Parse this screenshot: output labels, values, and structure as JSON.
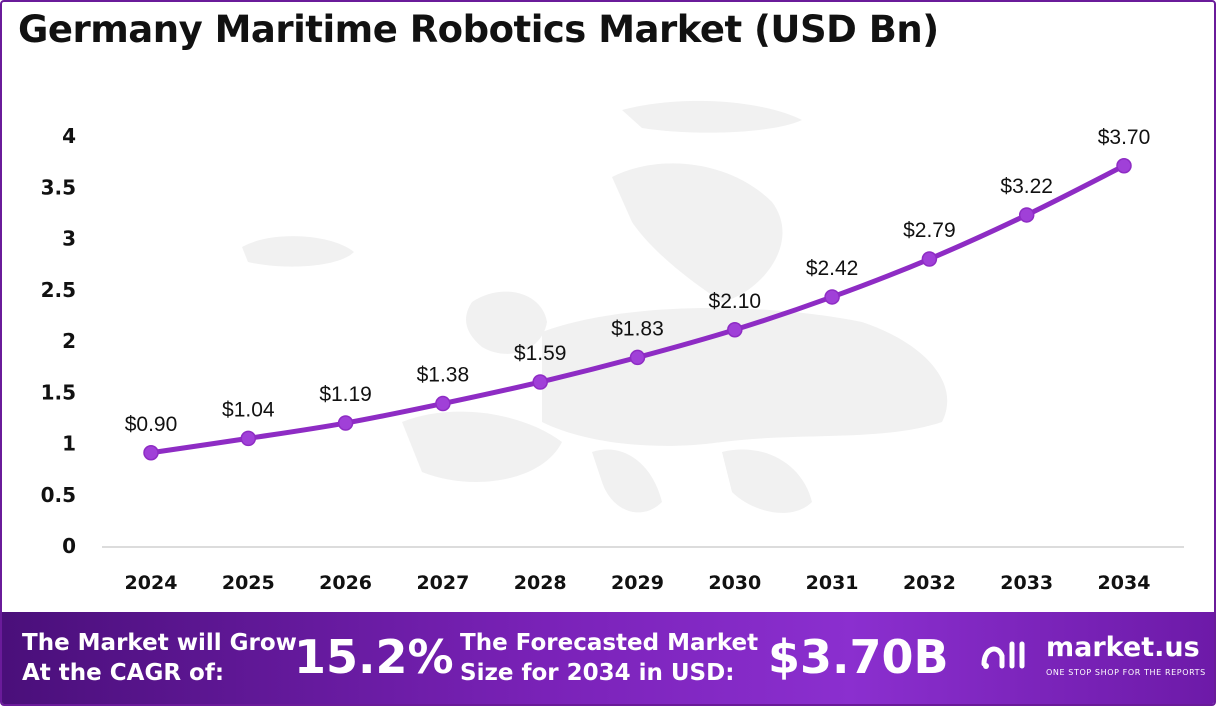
{
  "header": {
    "title": "Germany Maritime Robotics Market (USD Bn)"
  },
  "chart_data": {
    "type": "line",
    "title": "Germany Maritime Robotics Market (USD Bn)",
    "categories": [
      "2024",
      "2025",
      "2026",
      "2027",
      "2028",
      "2029",
      "2030",
      "2031",
      "2032",
      "2033",
      "2034"
    ],
    "values": [
      0.9,
      1.04,
      1.19,
      1.38,
      1.59,
      1.83,
      2.1,
      2.42,
      2.79,
      3.22,
      3.7
    ],
    "data_labels": [
      "$0.90",
      "$1.04",
      "$1.19",
      "$1.38",
      "$1.59",
      "$1.83",
      "$2.10",
      "$2.42",
      "$2.79",
      "$3.22",
      "$3.70"
    ],
    "y_ticks": [
      "0",
      "0.5",
      "1",
      "1.5",
      "2",
      "2.5",
      "3",
      "3.5",
      "4"
    ],
    "ylim": [
      0,
      4
    ],
    "grid": false,
    "legend": "none",
    "line_color": "#8e2cc4"
  },
  "footer": {
    "cagr_label_line1": "The Market will Grow",
    "cagr_label_line2": "At the CAGR of:",
    "cagr_value": "15.2%",
    "forecast_label_line1": "The Forecasted Market",
    "forecast_label_line2": "Size for 2034 in USD:",
    "forecast_value": "$3.70B"
  },
  "logo": {
    "name": "market.us",
    "tagline": "ONE STOP SHOP FOR THE REPORTS",
    "icon": "market-us-logo-icon"
  }
}
